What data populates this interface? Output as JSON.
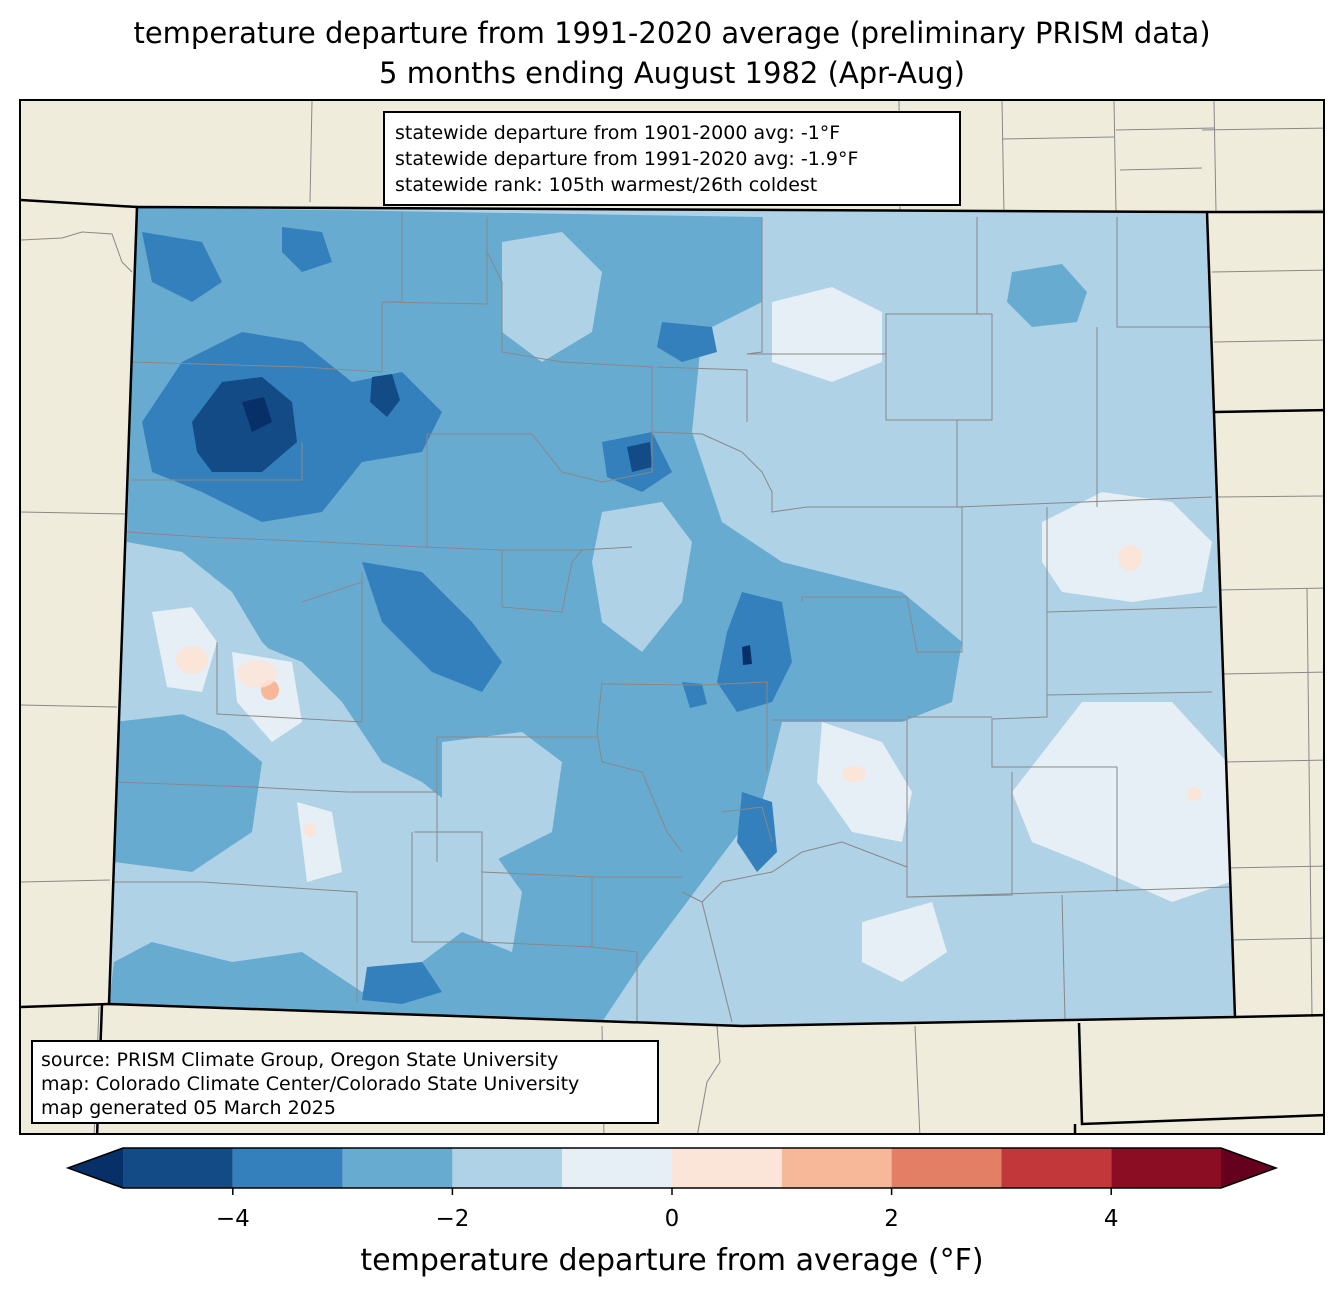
{
  "title": {
    "line1": "temperature departure from 1991-2020 average (preliminary PRISM data)",
    "line2": "5 months ending August 1982 (Apr-Aug)"
  },
  "stats": {
    "line1": "statewide departure from 1901-2000 avg: -1°F",
    "line2": "statewide departure from 1991-2020 avg: -1.9°F",
    "line3": "statewide rank: 105th warmest/26th coldest"
  },
  "source": {
    "line1": "source: PRISM Climate Group, Oregon State University",
    "line2": "map: Colorado Climate Center/Colorado State University",
    "line3": "map generated 05 March 2025"
  },
  "colorbar": {
    "label": "temperature departure from average (°F)",
    "ticks": [
      "−4",
      "−2",
      "0",
      "2",
      "4"
    ],
    "tick_values": [
      -4,
      -2,
      0,
      2,
      4
    ],
    "range": [
      -5,
      5
    ],
    "bin_edges": [
      -5,
      -4,
      -3,
      -2,
      -1,
      0,
      1,
      2,
      3,
      4,
      5
    ],
    "colors": [
      "#134b87",
      "#3480bc",
      "#68abd1",
      "#b0d2e6",
      "#e6eff5",
      "#fbe4d8",
      "#f7b89a",
      "#e27f65",
      "#c1373a",
      "#8b0d24"
    ],
    "under_color": "#073069",
    "over_color": "#66001f"
  },
  "map": {
    "region": "Colorado",
    "background_color": "#efecdc"
  }
}
